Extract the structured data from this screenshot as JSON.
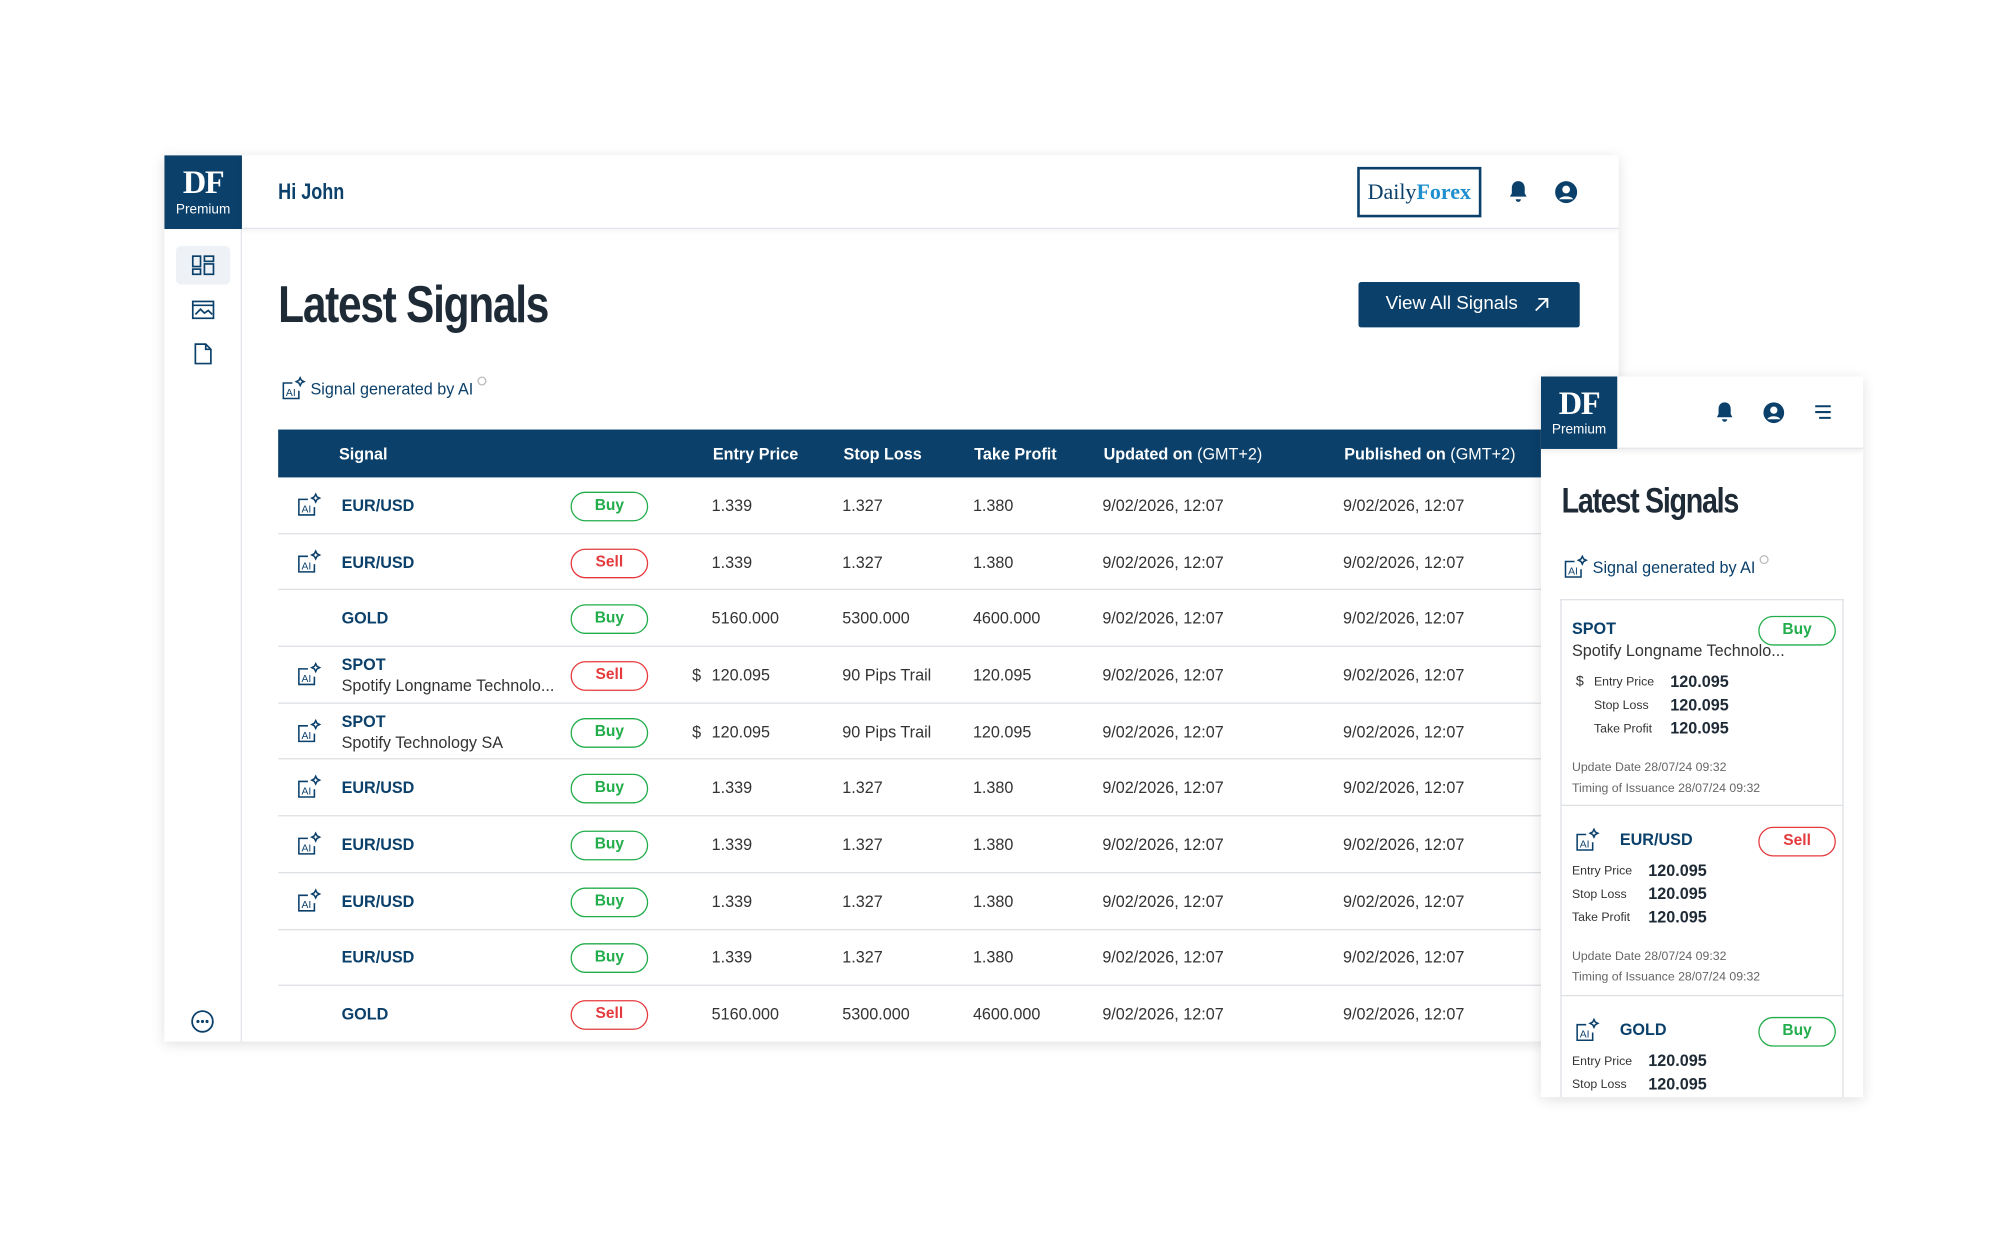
{
  "desktop": {
    "logo": {
      "brand": "DF",
      "sub": "Premium"
    },
    "greeting": "Hi John",
    "partner": {
      "first": "Daily",
      "second": "Forex"
    },
    "title": "Latest Signals",
    "button": "View All Signals",
    "ai_note": "Signal generated by AI",
    "table": {
      "headers": [
        {
          "label": "Signal"
        },
        {
          "label": "Entry Price"
        },
        {
          "label": "Stop Loss"
        },
        {
          "label": "Take Profit"
        },
        {
          "label": "Updated on",
          "note": "(GMT+2)"
        },
        {
          "label": "Published on",
          "note": "(GMT+2)"
        }
      ],
      "rows": [
        {
          "ai": true,
          "symbol": "EUR/USD",
          "action": "Buy",
          "entry": "1.339",
          "stop": "1.327",
          "take": "1.380",
          "updated": "9/02/2026, 12:07",
          "published": "9/02/2026, 12:07"
        },
        {
          "ai": true,
          "symbol": "EUR/USD",
          "action": "Sell",
          "entry": "1.339",
          "stop": "1.327",
          "take": "1.380",
          "updated": "9/02/2026, 12:07",
          "published": "9/02/2026, 12:07"
        },
        {
          "ai": false,
          "symbol": "GOLD",
          "action": "Buy",
          "entry": "5160.000",
          "stop": "5300.000",
          "take": "4600.000",
          "updated": "9/02/2026, 12:07",
          "published": "9/02/2026, 12:07"
        },
        {
          "ai": true,
          "symbol": "SPOT",
          "name": "Spotify Longname Technolo...",
          "action": "Sell",
          "currency": "$",
          "entry": "120.095",
          "stop": "90 Pips Trail",
          "take": "120.095",
          "updated": "9/02/2026, 12:07",
          "published": "9/02/2026, 12:07"
        },
        {
          "ai": true,
          "symbol": "SPOT",
          "name": "Spotify Technology SA",
          "action": "Buy",
          "currency": "$",
          "entry": "120.095",
          "stop": "90 Pips Trail",
          "take": "120.095",
          "updated": "9/02/2026, 12:07",
          "published": "9/02/2026, 12:07"
        },
        {
          "ai": true,
          "symbol": "EUR/USD",
          "action": "Buy",
          "entry": "1.339",
          "stop": "1.327",
          "take": "1.380",
          "updated": "9/02/2026, 12:07",
          "published": "9/02/2026, 12:07"
        },
        {
          "ai": true,
          "symbol": "EUR/USD",
          "action": "Buy",
          "entry": "1.339",
          "stop": "1.327",
          "take": "1.380",
          "updated": "9/02/2026, 12:07",
          "published": "9/02/2026, 12:07"
        },
        {
          "ai": true,
          "symbol": "EUR/USD",
          "action": "Buy",
          "entry": "1.339",
          "stop": "1.327",
          "take": "1.380",
          "updated": "9/02/2026, 12:07",
          "published": "9/02/2026, 12:07"
        },
        {
          "ai": false,
          "symbol": "EUR/USD",
          "action": "Buy",
          "entry": "1.339",
          "stop": "1.327",
          "take": "1.380",
          "updated": "9/02/2026, 12:07",
          "published": "9/02/2026, 12:07"
        },
        {
          "ai": false,
          "symbol": "GOLD",
          "action": "Sell",
          "entry": "5160.000",
          "stop": "5300.000",
          "take": "4600.000",
          "updated": "9/02/2026, 12:07",
          "published": "9/02/2026, 12:07"
        }
      ]
    }
  },
  "mobile": {
    "logo": {
      "brand": "DF",
      "sub": "Premium"
    },
    "title": "Latest Signals",
    "ai_note": "Signal generated by AI",
    "cards": [
      {
        "ai": false,
        "symbol": "SPOT",
        "name": "Spotify Longname Technolo...",
        "action": "Buy",
        "currency": "$",
        "fields": [
          {
            "label": "Entry Price",
            "value": "120.095"
          },
          {
            "label": "Stop Loss",
            "value": "120.095"
          },
          {
            "label": "Take Profit",
            "value": "120.095"
          }
        ],
        "update_label": "Update Date",
        "update": "28/07/24 09:32",
        "issuance_label": "Timing of Issuance",
        "issuance": "28/07/24 09:32"
      },
      {
        "ai": true,
        "symbol": "EUR/USD",
        "action": "Sell",
        "fields": [
          {
            "label": "Entry Price",
            "value": "120.095"
          },
          {
            "label": "Stop Loss",
            "value": "120.095"
          },
          {
            "label": "Take Profit",
            "value": "120.095"
          }
        ],
        "update_label": "Update Date",
        "update": "28/07/24 09:32",
        "issuance_label": "Timing of Issuance",
        "issuance": "28/07/24 09:32"
      },
      {
        "ai": true,
        "symbol": "GOLD",
        "action": "Buy",
        "fields": [
          {
            "label": "Entry Price",
            "value": "120.095"
          },
          {
            "label": "Stop Loss",
            "value": "120.095"
          }
        ]
      }
    ]
  },
  "ai_icon": "AI"
}
